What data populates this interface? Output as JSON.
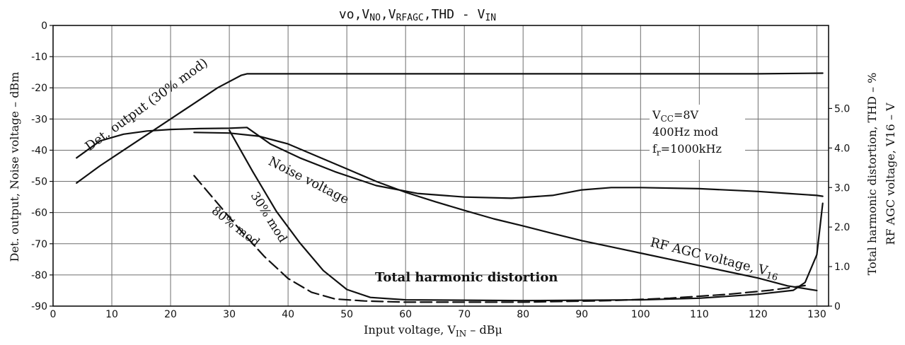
{
  "chart_data": {
    "type": "line",
    "title": "vo, VNO, VRFAGC, THD − VIN",
    "xlabel": "Input voltage, V_IN − dBμ",
    "ylabel": "Det. output, Noise voltage − dBm",
    "ylabel_right_1": "Total harmonic distortion, THD − %",
    "ylabel_right_2": "RF AGC voltage, V16 − V",
    "xlim": [
      0,
      132
    ],
    "ylim": [
      -90,
      0
    ],
    "ylim_right": [
      0,
      7.1
    ],
    "x_ticks": [
      0,
      10,
      20,
      30,
      40,
      50,
      60,
      70,
      80,
      90,
      100,
      110,
      120,
      130
    ],
    "y_ticks": [
      0,
      -10,
      -20,
      -30,
      -40,
      -50,
      -60,
      -70,
      -80,
      -90
    ],
    "y_right_ticks": [
      "0",
      "1.0",
      "2.0",
      "3.0",
      "4.0",
      "5.0"
    ],
    "y_right_values": [
      0,
      1,
      2,
      3,
      4,
      5
    ],
    "grid": true,
    "conditions": [
      "V_CC=8V",
      "400Hz mod",
      "f_r=1000kHz"
    ],
    "series": [
      {
        "name": "Det. output (30% mod)",
        "axis": "left",
        "style": "solid",
        "points": [
          [
            4,
            -50.5
          ],
          [
            8,
            -45
          ],
          [
            12,
            -40
          ],
          [
            16,
            -35
          ],
          [
            20,
            -30
          ],
          [
            24,
            -25
          ],
          [
            28,
            -20
          ],
          [
            32,
            -16
          ],
          [
            33,
            -15.5
          ],
          [
            40,
            -15.5
          ],
          [
            60,
            -15.5
          ],
          [
            80,
            -15.5
          ],
          [
            100,
            -15.5
          ],
          [
            120,
            -15.5
          ],
          [
            131,
            -15.3
          ]
        ]
      },
      {
        "name": "Noise voltage",
        "axis": "left",
        "style": "solid",
        "points": [
          [
            24,
            -34.3
          ],
          [
            30,
            -34.5
          ],
          [
            35,
            -35.5
          ],
          [
            40,
            -38
          ],
          [
            45,
            -42
          ],
          [
            50,
            -46
          ],
          [
            55,
            -50
          ],
          [
            60,
            -53.5
          ],
          [
            65,
            -56.5
          ],
          [
            70,
            -59.3
          ],
          [
            75,
            -62
          ],
          [
            80,
            -64.3
          ],
          [
            85,
            -66.7
          ],
          [
            90,
            -69
          ],
          [
            95,
            -71
          ],
          [
            100,
            -73
          ],
          [
            105,
            -75
          ],
          [
            110,
            -77
          ],
          [
            115,
            -79
          ],
          [
            120,
            -81
          ],
          [
            125,
            -83.5
          ],
          [
            130,
            -85
          ]
        ]
      },
      {
        "name": "RF AGC voltage, V16",
        "axis": "right",
        "style": "solid",
        "points": [
          [
            4,
            3.75
          ],
          [
            8,
            4.18
          ],
          [
            12,
            4.35
          ],
          [
            16,
            4.43
          ],
          [
            20,
            4.47
          ],
          [
            25,
            4.49
          ],
          [
            30,
            4.5
          ],
          [
            33,
            4.52
          ],
          [
            37,
            4.1
          ],
          [
            42,
            3.75
          ],
          [
            48,
            3.4
          ],
          [
            55,
            3.05
          ],
          [
            62,
            2.85
          ],
          [
            70,
            2.76
          ],
          [
            78,
            2.73
          ],
          [
            85,
            2.8
          ],
          [
            90,
            2.94
          ],
          [
            95,
            3.0
          ],
          [
            100,
            3.0
          ],
          [
            110,
            2.97
          ],
          [
            120,
            2.9
          ],
          [
            125,
            2.85
          ],
          [
            130,
            2.8
          ],
          [
            131,
            2.78
          ]
        ]
      },
      {
        "name": "30% mod",
        "axis": "right",
        "style": "solid",
        "points": [
          [
            30,
            4.45
          ],
          [
            34,
            3.4
          ],
          [
            38,
            2.4
          ],
          [
            42,
            1.6
          ],
          [
            46,
            0.9
          ],
          [
            50,
            0.42
          ],
          [
            54,
            0.22
          ],
          [
            60,
            0.16
          ],
          [
            80,
            0.14
          ],
          [
            100,
            0.16
          ],
          [
            110,
            0.2
          ],
          [
            120,
            0.3
          ],
          [
            126,
            0.4
          ],
          [
            128,
            0.6
          ],
          [
            130,
            1.3
          ],
          [
            131,
            2.6
          ]
        ]
      },
      {
        "name": "80% mod",
        "axis": "right",
        "style": "dashed",
        "points": [
          [
            24,
            3.3
          ],
          [
            28,
            2.6
          ],
          [
            32,
            1.9
          ],
          [
            36,
            1.25
          ],
          [
            40,
            0.7
          ],
          [
            44,
            0.35
          ],
          [
            48,
            0.18
          ],
          [
            53,
            0.13
          ],
          [
            60,
            0.1
          ],
          [
            80,
            0.1
          ],
          [
            95,
            0.14
          ],
          [
            105,
            0.2
          ],
          [
            115,
            0.3
          ],
          [
            122,
            0.4
          ],
          [
            126,
            0.48
          ],
          [
            128,
            0.52
          ]
        ]
      }
    ],
    "annotations": [
      "Det. output (30% mod)",
      "Noise voltage",
      "RF AGC voltage, V16",
      "30% mod",
      "80% mod",
      "Total harmonic distortion"
    ]
  }
}
